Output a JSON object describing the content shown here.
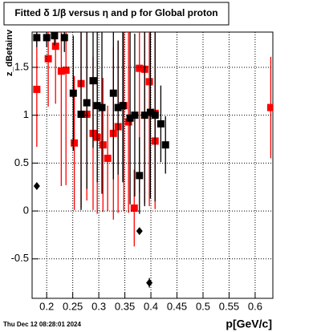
{
  "chart_data": {
    "type": "errorbar",
    "title": "Fitted δ 1/β versus η and p for Global proton",
    "x_label": "p[GeV/c]",
    "y_label": "z_dBetainv",
    "timestamp": "Thu Dec 12 08:28:01 2024",
    "xlim": [
      0.172,
      0.634
    ],
    "ylim": [
      -0.912,
      1.868
    ],
    "xticks": [
      0.2,
      0.25,
      0.3,
      0.35,
      0.4,
      0.45,
      0.5,
      0.55,
      0.6
    ],
    "yticks": [
      -0.5,
      0,
      0.5,
      1,
      1.5
    ],
    "grid": true,
    "series": [
      {
        "color": "#ff0000",
        "marker": "square",
        "x": [
          0.181,
          0.203,
          0.217,
          0.228,
          0.237,
          0.253,
          0.266,
          0.277,
          0.289,
          0.297,
          0.308,
          0.317,
          0.328,
          0.337,
          0.348,
          0.357,
          0.368,
          0.378,
          0.388,
          0.397,
          0.408,
          0.408,
          0.63
        ],
        "values": [
          1.27,
          1.59,
          1.72,
          1.46,
          1.47,
          0.71,
          1.33,
          1.01,
          0.81,
          0.77,
          0.69,
          0.55,
          0.81,
          0.88,
          1.1,
          0.93,
          0.03,
          1.49,
          1.48,
          1.35,
          1.02,
          0.73,
          1.08
        ],
        "errors": [
          0.6,
          0.5,
          0.6,
          1.2,
          1.2,
          0.7,
          1.3,
          0.9,
          0.8,
          0.8,
          0.7,
          0.55,
          0.9,
          0.9,
          1.1,
          0.95,
          0.4,
          1.3,
          1.4,
          1.3,
          1.0,
          0.3,
          0.53
        ]
      },
      {
        "color": "#000000",
        "marker": "square",
        "x": [
          0.181,
          0.2,
          0.215,
          0.234,
          0.251,
          0.266,
          0.277,
          0.289,
          0.297,
          0.306,
          0.328,
          0.337,
          0.346,
          0.36,
          0.369,
          0.378,
          0.388,
          0.399,
          0.408,
          0.419,
          0.428
        ],
        "values": [
          1.81,
          1.81,
          1.83,
          1.81,
          1.23,
          1.01,
          1.13,
          1.36,
          1.1,
          1.08,
          1.23,
          1.08,
          1.1,
          0.97,
          1.0,
          0.37,
          1.0,
          1.03,
          1.0,
          0.91,
          0.69
        ],
        "errors": [
          0.1,
          0.1,
          0.1,
          0.15,
          0.6,
          1.0,
          0.9,
          0.7,
          0.8,
          0.9,
          0.9,
          0.7,
          0.8,
          0.9,
          0.85,
          0.4,
          0.95,
          0.9,
          0.9,
          0.4,
          0.3
        ]
      },
      {
        "color": "#000000",
        "marker": "diamond",
        "x": [
          0.181,
          0.378,
          0.397
        ],
        "values": [
          0.26,
          -0.21,
          -0.75
        ],
        "errors": [
          0.03,
          0.03,
          0.05
        ]
      }
    ]
  }
}
